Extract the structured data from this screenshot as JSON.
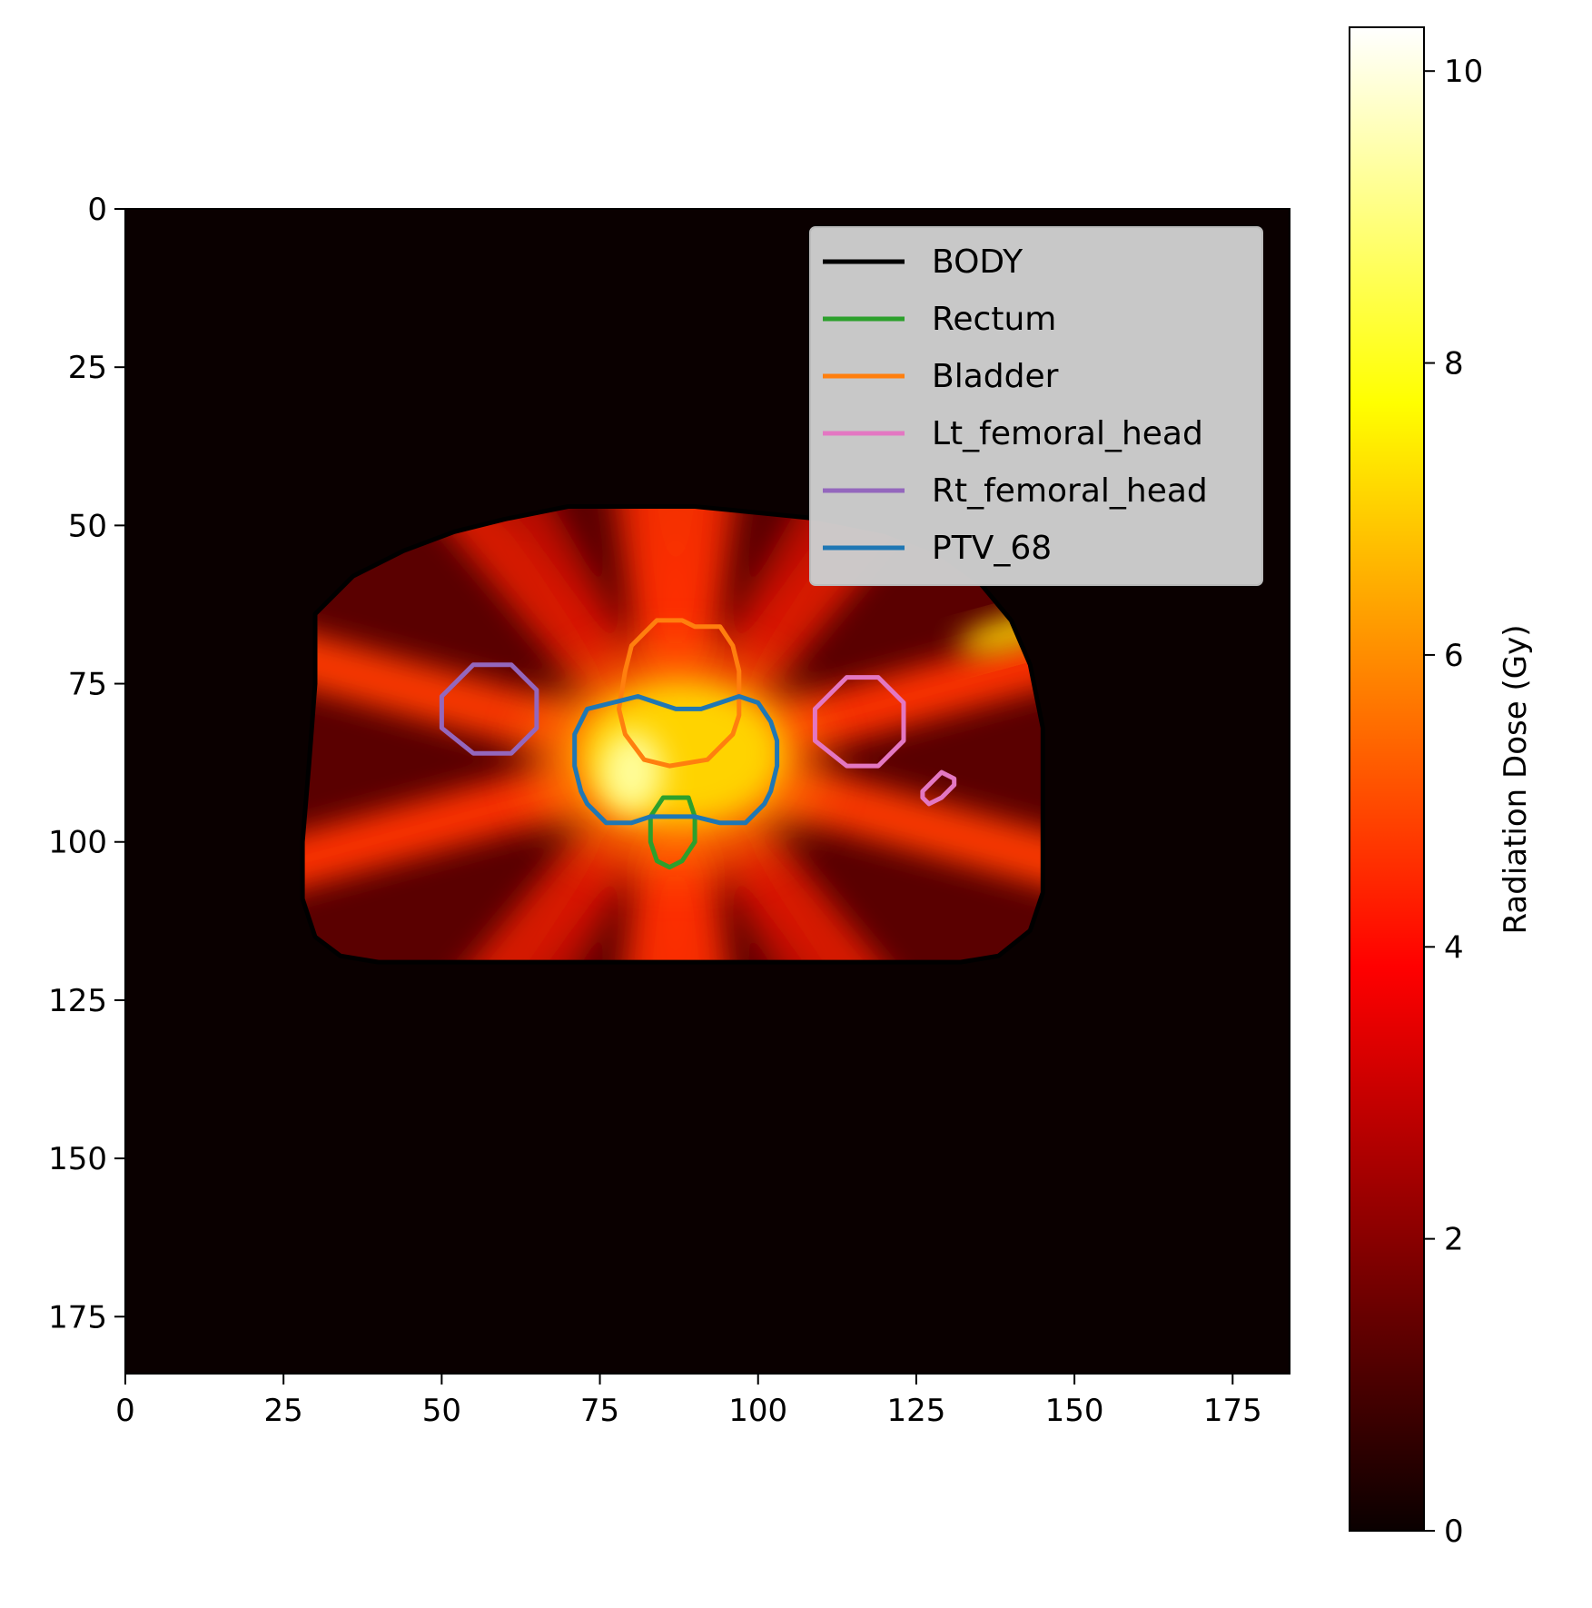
{
  "chart_data": {
    "type": "heatmap",
    "title": "",
    "xlabel": "",
    "ylabel": "",
    "xlim": [
      0,
      184
    ],
    "ylim": [
      184,
      0
    ],
    "x_ticks": [
      0,
      25,
      50,
      75,
      100,
      125,
      150,
      175
    ],
    "y_ticks": [
      0,
      25,
      50,
      75,
      100,
      125,
      150,
      175
    ],
    "x_tick_labels": [
      "0",
      "25",
      "50",
      "75",
      "100",
      "125",
      "150",
      "175"
    ],
    "y_tick_labels": [
      "0",
      "25",
      "50",
      "75",
      "100",
      "125",
      "150",
      "175"
    ],
    "colormap": "hot",
    "grid": false,
    "colorbar": {
      "label": "Radiation Dose (Gy)",
      "min": 0,
      "max": 10.3,
      "ticks": [
        0,
        2,
        4,
        6,
        8,
        10
      ],
      "tick_labels": [
        "0",
        "2",
        "4",
        "6",
        "8",
        "10"
      ]
    },
    "legend": {
      "placement": "upper-right",
      "entries": [
        {
          "name": "BODY",
          "color": "#000000"
        },
        {
          "name": "Rectum",
          "color": "#2ca02c"
        },
        {
          "name": "Bladder",
          "color": "#ff7f0e"
        },
        {
          "name": "Lt_femoral_head",
          "color": "#e377c2"
        },
        {
          "name": "Rt_femoral_head",
          "color": "#9467bd"
        },
        {
          "name": "PTV_68",
          "color": "#1f77b4"
        }
      ]
    },
    "contours": [
      {
        "name": "BODY",
        "color": "#000000",
        "points": [
          [
            30,
            64
          ],
          [
            36,
            58
          ],
          [
            44,
            54
          ],
          [
            52,
            51
          ],
          [
            60,
            49
          ],
          [
            70,
            47
          ],
          [
            80,
            47
          ],
          [
            90,
            47
          ],
          [
            100,
            48
          ],
          [
            110,
            49
          ],
          [
            120,
            51
          ],
          [
            128,
            54
          ],
          [
            135,
            59
          ],
          [
            140,
            65
          ],
          [
            143,
            72
          ],
          [
            145,
            82
          ],
          [
            145,
            95
          ],
          [
            145,
            108
          ],
          [
            143,
            114
          ],
          [
            138,
            118
          ],
          [
            132,
            119
          ],
          [
            120,
            119
          ],
          [
            100,
            119
          ],
          [
            80,
            119
          ],
          [
            60,
            119
          ],
          [
            40,
            119
          ],
          [
            34,
            118
          ],
          [
            30,
            115
          ],
          [
            28,
            109
          ],
          [
            28,
            100
          ],
          [
            29,
            88
          ],
          [
            30,
            75
          ]
        ]
      },
      {
        "name": "Bladder",
        "color": "#ff7f0e",
        "points": [
          [
            84,
            65
          ],
          [
            88,
            65
          ],
          [
            90,
            66
          ],
          [
            94,
            66
          ],
          [
            96,
            69
          ],
          [
            97,
            73
          ],
          [
            97,
            80
          ],
          [
            96,
            83
          ],
          [
            92,
            87
          ],
          [
            86,
            88
          ],
          [
            82,
            87
          ],
          [
            79,
            83
          ],
          [
            78,
            79
          ],
          [
            79,
            73
          ],
          [
            80,
            69
          ],
          [
            82,
            67
          ]
        ]
      },
      {
        "name": "Rt_femoral_head",
        "color": "#9467bd",
        "points": [
          [
            55,
            72
          ],
          [
            61,
            72
          ],
          [
            65,
            76
          ],
          [
            65,
            82
          ],
          [
            61,
            86
          ],
          [
            55,
            86
          ],
          [
            50,
            82
          ],
          [
            50,
            77
          ]
        ]
      },
      {
        "name": "Lt_femoral_head",
        "color": "#e377c2",
        "points": [
          [
            114,
            74
          ],
          [
            119,
            74
          ],
          [
            123,
            78
          ],
          [
            123,
            84
          ],
          [
            119,
            88
          ],
          [
            114,
            88
          ],
          [
            109,
            84
          ],
          [
            109,
            79
          ]
        ]
      },
      {
        "name": "Lt_femoral_head",
        "color": "#e377c2",
        "points": [
          [
            129,
            89
          ],
          [
            131,
            90
          ],
          [
            131,
            91
          ],
          [
            129,
            93
          ],
          [
            127,
            94
          ],
          [
            126,
            93
          ],
          [
            126,
            92
          ],
          [
            127,
            91
          ]
        ]
      },
      {
        "name": "Rectum",
        "color": "#2ca02c",
        "points": [
          [
            85,
            93
          ],
          [
            89,
            93
          ],
          [
            90,
            96
          ],
          [
            90,
            100
          ],
          [
            88,
            103
          ],
          [
            86,
            104
          ],
          [
            84,
            103
          ],
          [
            83,
            100
          ],
          [
            83,
            96
          ]
        ]
      },
      {
        "name": "PTV_68",
        "color": "#1f77b4",
        "points": [
          [
            77,
            78
          ],
          [
            81,
            77
          ],
          [
            84,
            78
          ],
          [
            87,
            79
          ],
          [
            91,
            79
          ],
          [
            94,
            78
          ],
          [
            97,
            77
          ],
          [
            100,
            78
          ],
          [
            102,
            81
          ],
          [
            103,
            84
          ],
          [
            103,
            88
          ],
          [
            102,
            92
          ],
          [
            101,
            94
          ],
          [
            98,
            97
          ],
          [
            94,
            97
          ],
          [
            90,
            96
          ],
          [
            86,
            96
          ],
          [
            83,
            96
          ],
          [
            80,
            97
          ],
          [
            76,
            97
          ],
          [
            73,
            94
          ],
          [
            72,
            92
          ],
          [
            71,
            88
          ],
          [
            71,
            83
          ],
          [
            73,
            79
          ]
        ]
      }
    ]
  }
}
